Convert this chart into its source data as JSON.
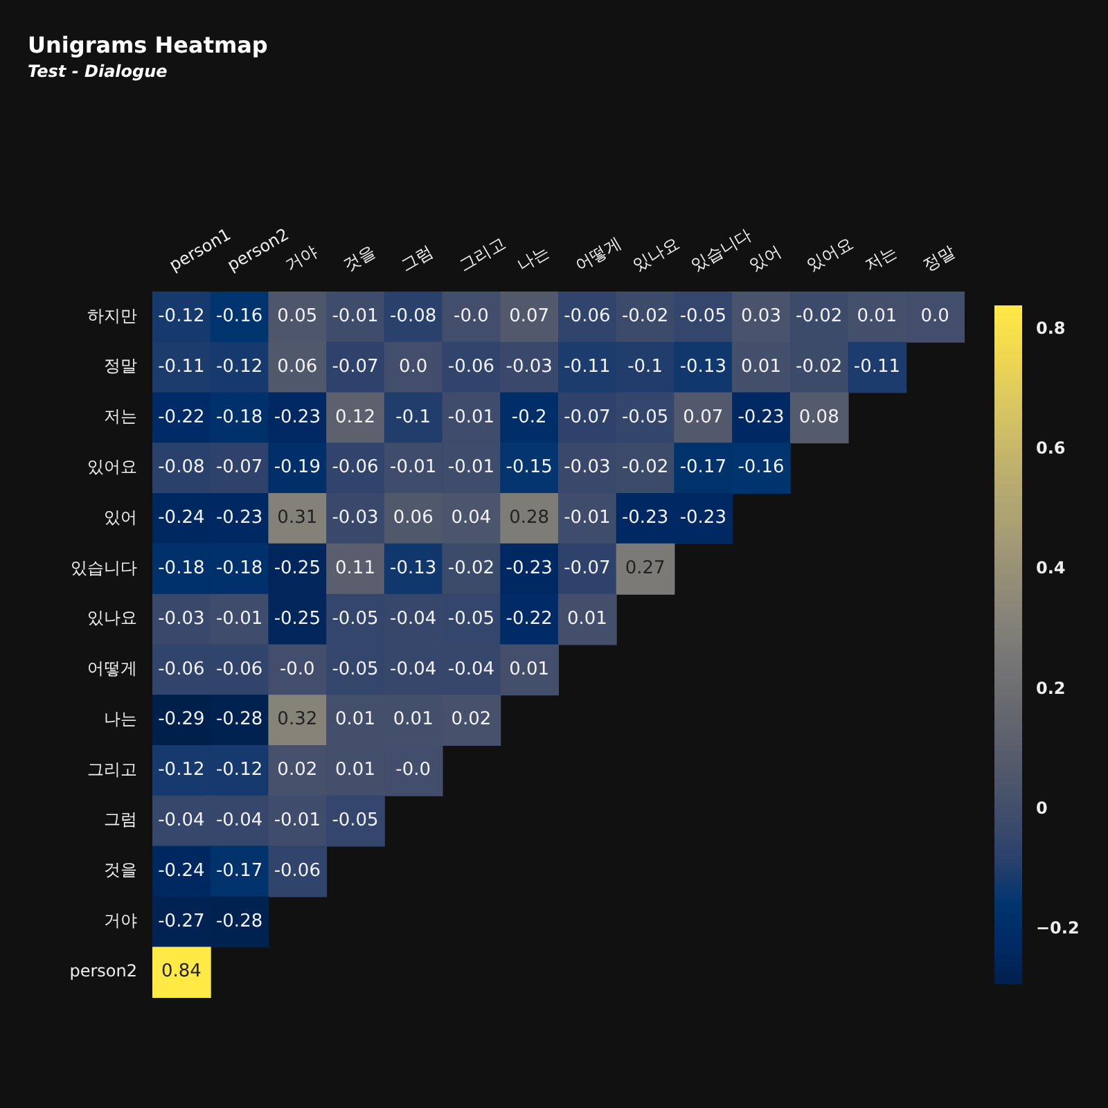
{
  "chart_data": {
    "type": "heatmap",
    "title": "Unigrams Heatmap",
    "subtitle": "Test - Dialogue",
    "categories": [
      "person1",
      "person2",
      "거야",
      "것을",
      "그럼",
      "그리고",
      "나는",
      "어떻게",
      "있나요",
      "있습니다",
      "있어",
      "있어요",
      "저는",
      "정말"
    ],
    "y_categories": [
      "하지만",
      "정말",
      "저는",
      "있어요",
      "있어",
      "있습니다",
      "있나요",
      "어떻게",
      "나는",
      "그리고",
      "그럼",
      "것을",
      "거야",
      "person2"
    ],
    "cells": [
      [
        -0.12,
        -0.16,
        0.05,
        -0.01,
        -0.08,
        -0.0,
        0.07,
        -0.06,
        -0.02,
        -0.05,
        0.03,
        -0.02,
        0.01,
        0.0
      ],
      [
        -0.11,
        -0.12,
        0.06,
        -0.07,
        0.0,
        -0.06,
        -0.03,
        -0.11,
        -0.1,
        -0.13,
        0.01,
        -0.02,
        -0.11,
        null
      ],
      [
        -0.22,
        -0.18,
        -0.23,
        0.12,
        -0.1,
        -0.01,
        -0.2,
        -0.07,
        -0.05,
        0.07,
        -0.23,
        0.08,
        null,
        null
      ],
      [
        -0.08,
        -0.07,
        -0.19,
        -0.06,
        -0.01,
        -0.01,
        -0.15,
        -0.03,
        -0.02,
        -0.17,
        -0.16,
        null,
        null,
        null
      ],
      [
        -0.24,
        -0.23,
        0.31,
        -0.03,
        0.06,
        0.04,
        0.28,
        -0.01,
        -0.23,
        -0.23,
        null,
        null,
        null,
        null
      ],
      [
        -0.18,
        -0.18,
        -0.25,
        0.11,
        -0.13,
        -0.02,
        -0.23,
        -0.07,
        0.27,
        null,
        null,
        null,
        null,
        null
      ],
      [
        -0.03,
        -0.01,
        -0.25,
        -0.05,
        -0.04,
        -0.05,
        -0.22,
        0.01,
        null,
        null,
        null,
        null,
        null,
        null
      ],
      [
        -0.06,
        -0.06,
        -0.0,
        -0.05,
        -0.04,
        -0.04,
        0.01,
        null,
        null,
        null,
        null,
        null,
        null,
        null
      ],
      [
        -0.29,
        -0.28,
        0.32,
        0.01,
        0.01,
        0.02,
        null,
        null,
        null,
        null,
        null,
        null,
        null,
        null
      ],
      [
        -0.12,
        -0.12,
        0.02,
        0.01,
        -0.0,
        null,
        null,
        null,
        null,
        null,
        null,
        null,
        null,
        null
      ],
      [
        -0.04,
        -0.04,
        -0.01,
        -0.05,
        null,
        null,
        null,
        null,
        null,
        null,
        null,
        null,
        null,
        null
      ],
      [
        -0.24,
        -0.17,
        -0.06,
        null,
        null,
        null,
        null,
        null,
        null,
        null,
        null,
        null,
        null,
        null
      ],
      [
        -0.27,
        -0.28,
        null,
        null,
        null,
        null,
        null,
        null,
        null,
        null,
        null,
        null,
        null,
        null
      ],
      [
        0.84,
        null,
        null,
        null,
        null,
        null,
        null,
        null,
        null,
        null,
        null,
        null,
        null,
        null
      ]
    ],
    "cell_labels": [
      [
        "-0.12",
        "-0.16",
        "0.05",
        "-0.01",
        "-0.08",
        "-0.0",
        "0.07",
        "-0.06",
        "-0.02",
        "-0.05",
        "0.03",
        "-0.02",
        "0.01",
        "0.0"
      ],
      [
        "-0.11",
        "-0.12",
        "0.06",
        "-0.07",
        "0.0",
        "-0.06",
        "-0.03",
        "-0.11",
        "-0.1",
        "-0.13",
        "0.01",
        "-0.02",
        "-0.11",
        null
      ],
      [
        "-0.22",
        "-0.18",
        "-0.23",
        "0.12",
        "-0.1",
        "-0.01",
        "-0.2",
        "-0.07",
        "-0.05",
        "0.07",
        "-0.23",
        "0.08",
        null,
        null
      ],
      [
        "-0.08",
        "-0.07",
        "-0.19",
        "-0.06",
        "-0.01",
        "-0.01",
        "-0.15",
        "-0.03",
        "-0.02",
        "-0.17",
        "-0.16",
        null,
        null,
        null
      ],
      [
        "-0.24",
        "-0.23",
        "0.31",
        "-0.03",
        "0.06",
        "0.04",
        "0.28",
        "-0.01",
        "-0.23",
        "-0.23",
        null,
        null,
        null,
        null
      ],
      [
        "-0.18",
        "-0.18",
        "-0.25",
        "0.11",
        "-0.13",
        "-0.02",
        "-0.23",
        "-0.07",
        "0.27",
        null,
        null,
        null,
        null,
        null
      ],
      [
        "-0.03",
        "-0.01",
        "-0.25",
        "-0.05",
        "-0.04",
        "-0.05",
        "-0.22",
        "0.01",
        null,
        null,
        null,
        null,
        null,
        null
      ],
      [
        "-0.06",
        "-0.06",
        "-0.0",
        "-0.05",
        "-0.04",
        "-0.04",
        "0.01",
        null,
        null,
        null,
        null,
        null,
        null,
        null
      ],
      [
        "-0.29",
        "-0.28",
        "0.32",
        "0.01",
        "0.01",
        "0.02",
        null,
        null,
        null,
        null,
        null,
        null,
        null,
        null
      ],
      [
        "-0.12",
        "-0.12",
        "0.02",
        "0.01",
        "-0.0",
        null,
        null,
        null,
        null,
        null,
        null,
        null,
        null,
        null
      ],
      [
        "-0.04",
        "-0.04",
        "-0.01",
        "-0.05",
        null,
        null,
        null,
        null,
        null,
        null,
        null,
        null,
        null,
        null
      ],
      [
        "-0.24",
        "-0.17",
        "-0.06",
        null,
        null,
        null,
        null,
        null,
        null,
        null,
        null,
        null,
        null,
        null
      ],
      [
        "-0.27",
        "-0.28",
        null,
        null,
        null,
        null,
        null,
        null,
        null,
        null,
        null,
        null,
        null,
        null
      ],
      [
        "0.84",
        null,
        null,
        null,
        null,
        null,
        null,
        null,
        null,
        null,
        null,
        null,
        null,
        null
      ]
    ],
    "clim": [
      -0.29,
      0.84
    ],
    "cticks": [
      {
        "value": -0.2,
        "label": "−0.2"
      },
      0,
      0.2,
      0.4,
      0.6,
      0.8
    ]
  }
}
